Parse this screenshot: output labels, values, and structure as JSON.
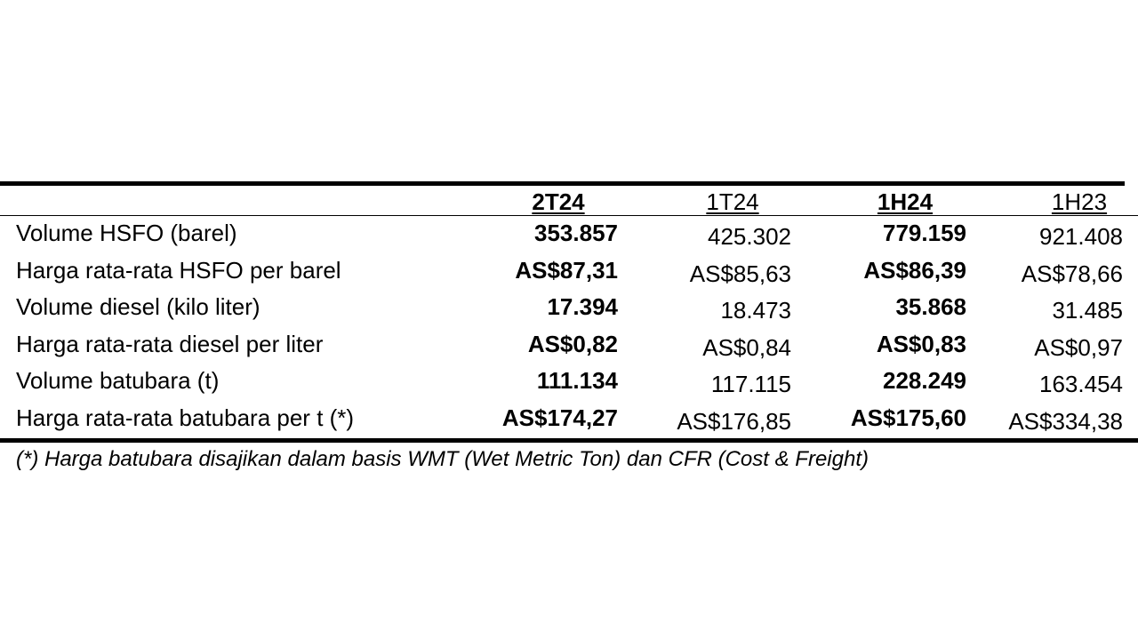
{
  "table": {
    "columns": [
      "2T24",
      "1T24",
      "1H24",
      "1H23"
    ],
    "rows": [
      [
        "Volume HSFO (barel)",
        "353.857",
        "425.302",
        "779.159",
        "921.408"
      ],
      [
        "Harga rata-rata HSFO per barel",
        "AS$87,31",
        "AS$85,63",
        "AS$86,39",
        "AS$78,66"
      ],
      [
        "Volume diesel (kilo liter)",
        "17.394",
        "18.473",
        "35.868",
        "31.485"
      ],
      [
        "Harga rata-rata diesel per liter",
        "AS$0,82",
        "AS$0,84",
        "AS$0,83",
        "AS$0,97"
      ],
      [
        "Volume batubara (t)",
        "111.134",
        "117.115",
        "228.249",
        "163.454"
      ],
      [
        "Harga rata-rata batubara per t (*)",
        "AS$174,27",
        "AS$176,85",
        "AS$175,60",
        "AS$334,38"
      ]
    ],
    "footnote": "(*) Harga batubara disajikan dalam basis WMT (Wet Metric Ton) dan CFR (Cost & Freight)"
  }
}
